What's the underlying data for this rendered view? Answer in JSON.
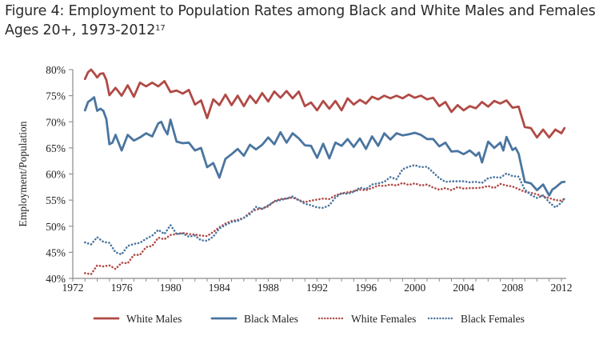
{
  "title": {
    "line1": "Figure 4: Employment to Population Rates among Black and White Males and Females",
    "line2": "Ages 20+, 1973-2012",
    "footnote": "17"
  },
  "chart_data": {
    "type": "line",
    "title": "Figure 4: Employment to Population Rates among Black and White Males and Females Ages 20+, 1973-2012",
    "xlabel": "",
    "ylabel": "Employment/Population",
    "xlim": [
      1972,
      2013
    ],
    "ylim": [
      40,
      80
    ],
    "x_ticks": [
      1972,
      1976,
      1980,
      1984,
      1988,
      1992,
      1996,
      2000,
      2004,
      2008,
      2012
    ],
    "x_tick_labels": [
      "1972",
      "1976",
      "1980",
      "1984",
      "1988",
      "1992",
      "1996",
      "2000",
      "2004",
      "2008",
      "2012"
    ],
    "y_ticks": [
      40,
      45,
      50,
      55,
      60,
      65,
      70,
      75,
      80
    ],
    "y_tick_labels": [
      "40%",
      "45%",
      "50%",
      "55%",
      "60%",
      "65%",
      "70%",
      "75%",
      "80%"
    ],
    "grid": false,
    "legend_position": "bottom",
    "colors": {
      "white": "#b04a45",
      "black": "#4a75a0"
    },
    "series": [
      {
        "name": "White Males",
        "style": "solid",
        "color": "#b04a45",
        "x": [
          1973.0,
          1973.25,
          1973.5,
          1973.75,
          1974.0,
          1974.25,
          1974.5,
          1974.75,
          1975.0,
          1975.5,
          1976.0,
          1976.5,
          1977.0,
          1977.5,
          1978.0,
          1978.5,
          1979.0,
          1979.5,
          1980.0,
          1980.5,
          1981.0,
          1981.5,
          1982.0,
          1982.5,
          1983.0,
          1983.5,
          1984.0,
          1984.5,
          1985.0,
          1985.5,
          1986.0,
          1986.5,
          1987.0,
          1987.5,
          1988.0,
          1988.5,
          1989.0,
          1989.5,
          1990.0,
          1990.5,
          1991.0,
          1991.5,
          1992.0,
          1992.5,
          1993.0,
          1993.5,
          1994.0,
          1994.5,
          1995.0,
          1995.5,
          1996.0,
          1996.5,
          1997.0,
          1997.5,
          1998.0,
          1998.5,
          1999.0,
          1999.5,
          2000.0,
          2000.5,
          2001.0,
          2001.5,
          2002.0,
          2002.5,
          2003.0,
          2003.5,
          2004.0,
          2004.5,
          2005.0,
          2005.5,
          2006.0,
          2006.5,
          2007.0,
          2007.5,
          2008.0,
          2008.5,
          2009.0,
          2009.5,
          2010.0,
          2010.5,
          2011.0,
          2011.5,
          2012.0,
          2012.25
        ],
        "values": [
          78.2,
          79.5,
          80.0,
          79.3,
          78.5,
          79.2,
          79.3,
          78.0,
          75.1,
          76.5,
          75.0,
          77.0,
          74.8,
          77.5,
          76.8,
          77.5,
          76.8,
          77.8,
          75.7,
          76.0,
          75.4,
          76.1,
          73.3,
          74.1,
          70.7,
          74.3,
          73.2,
          75.2,
          73.2,
          75.0,
          73.0,
          75.0,
          73.6,
          75.5,
          73.9,
          75.8,
          74.6,
          75.9,
          74.5,
          75.8,
          73.0,
          73.7,
          72.2,
          74.0,
          72.5,
          74.0,
          72.2,
          74.5,
          73.3,
          74.2,
          73.5,
          74.8,
          74.3,
          75.0,
          74.5,
          75.0,
          74.5,
          75.2,
          74.6,
          75.0,
          74.3,
          74.6,
          73.0,
          73.8,
          71.9,
          73.2,
          72.2,
          73.0,
          72.6,
          73.8,
          72.9,
          74.0,
          73.5,
          74.1,
          72.7,
          72.9,
          69.0,
          68.8,
          67.0,
          68.5,
          67.0,
          68.5,
          67.8,
          68.8
        ]
      },
      {
        "name": "Black Males",
        "style": "solid",
        "color": "#4a75a0",
        "x": [
          1973.0,
          1973.25,
          1973.5,
          1973.75,
          1974.0,
          1974.25,
          1974.5,
          1974.75,
          1975.0,
          1975.25,
          1975.5,
          1976.0,
          1976.5,
          1977.0,
          1977.5,
          1978.0,
          1978.5,
          1979.0,
          1979.25,
          1979.5,
          1979.75,
          1980.0,
          1980.5,
          1981.0,
          1981.5,
          1982.0,
          1982.5,
          1983.0,
          1983.5,
          1984.0,
          1984.5,
          1985.0,
          1985.5,
          1986.0,
          1986.5,
          1987.0,
          1987.5,
          1988.0,
          1988.5,
          1989.0,
          1989.5,
          1990.0,
          1990.5,
          1991.0,
          1991.5,
          1992.0,
          1992.5,
          1993.0,
          1993.5,
          1994.0,
          1994.5,
          1995.0,
          1995.5,
          1996.0,
          1996.5,
          1997.0,
          1997.5,
          1998.0,
          1998.5,
          1999.0,
          1999.5,
          2000.0,
          2000.5,
          2001.0,
          2001.5,
          2002.0,
          2002.5,
          2003.0,
          2003.5,
          2004.0,
          2004.5,
          2005.0,
          2005.25,
          2005.5,
          2006.0,
          2006.5,
          2007.0,
          2007.25,
          2007.5,
          2008.0,
          2008.25,
          2008.5,
          2009.0,
          2009.5,
          2010.0,
          2010.5,
          2011.0,
          2011.25,
          2011.5,
          2012.0,
          2012.25
        ],
        "values": [
          72.2,
          73.8,
          74.2,
          74.7,
          72.1,
          72.5,
          72.1,
          70.5,
          65.7,
          66.0,
          67.5,
          64.5,
          67.5,
          66.4,
          67.0,
          67.8,
          67.2,
          69.7,
          70.0,
          68.6,
          67.6,
          70.4,
          66.2,
          65.9,
          66.0,
          64.5,
          65.0,
          61.3,
          62.1,
          59.3,
          62.9,
          63.8,
          64.8,
          63.5,
          65.6,
          64.7,
          65.6,
          67.0,
          65.7,
          68.0,
          66.0,
          67.8,
          66.8,
          65.5,
          65.4,
          63.1,
          65.8,
          63.0,
          66.0,
          65.4,
          66.7,
          65.2,
          66.8,
          64.8,
          67.2,
          65.4,
          67.8,
          66.6,
          67.8,
          67.4,
          67.6,
          67.9,
          67.5,
          66.7,
          66.7,
          65.3,
          66.0,
          64.3,
          64.4,
          63.8,
          64.5,
          63.5,
          64.1,
          62.2,
          66.2,
          65.0,
          66.0,
          64.5,
          67.1,
          64.6,
          65.0,
          63.9,
          58.5,
          58.2,
          56.9,
          58.0,
          55.9,
          57.0,
          57.4,
          58.4,
          58.5
        ]
      },
      {
        "name": "White Females",
        "style": "dotted",
        "color": "#b04a45",
        "x": [
          1973.0,
          1973.5,
          1974.0,
          1974.5,
          1975.0,
          1975.5,
          1976.0,
          1976.5,
          1977.0,
          1977.5,
          1978.0,
          1978.5,
          1979.0,
          1979.5,
          1980.0,
          1980.5,
          1981.0,
          1981.5,
          1982.0,
          1982.5,
          1983.0,
          1983.5,
          1984.0,
          1984.5,
          1985.0,
          1985.5,
          1986.0,
          1986.5,
          1987.0,
          1987.5,
          1988.0,
          1988.5,
          1989.0,
          1989.5,
          1990.0,
          1990.5,
          1991.0,
          1991.5,
          1992.0,
          1992.5,
          1993.0,
          1993.5,
          1994.0,
          1994.5,
          1995.0,
          1995.5,
          1996.0,
          1996.5,
          1997.0,
          1997.5,
          1998.0,
          1998.5,
          1999.0,
          1999.5,
          2000.0,
          2000.5,
          2001.0,
          2001.5,
          2002.0,
          2002.5,
          2003.0,
          2003.5,
          2004.0,
          2004.5,
          2005.0,
          2005.5,
          2006.0,
          2006.5,
          2007.0,
          2007.5,
          2008.0,
          2008.5,
          2009.0,
          2009.5,
          2010.0,
          2010.5,
          2011.0,
          2011.5,
          2012.0,
          2012.25
        ],
        "values": [
          41.0,
          40.8,
          42.5,
          42.3,
          42.5,
          41.8,
          43.0,
          42.9,
          44.5,
          44.5,
          46.0,
          46.2,
          47.8,
          47.5,
          48.3,
          48.5,
          48.7,
          48.5,
          48.4,
          48.2,
          48.1,
          48.9,
          49.8,
          50.5,
          51.0,
          51.2,
          51.6,
          52.6,
          53.2,
          53.4,
          53.8,
          54.8,
          55.2,
          55.3,
          55.5,
          55.0,
          54.6,
          54.9,
          55.1,
          55.3,
          55.2,
          55.9,
          56.3,
          56.5,
          56.7,
          57.0,
          56.9,
          57.3,
          57.8,
          57.7,
          58.0,
          57.8,
          58.3,
          57.9,
          58.2,
          57.8,
          58.0,
          57.4,
          57.0,
          57.3,
          56.9,
          57.5,
          57.2,
          57.3,
          57.3,
          57.4,
          57.7,
          57.3,
          58.1,
          57.8,
          57.6,
          57.1,
          56.6,
          56.4,
          56.1,
          55.7,
          55.4,
          55.0,
          54.9,
          55.2
        ]
      },
      {
        "name": "Black Females",
        "style": "dotted",
        "color": "#4a75a0",
        "x": [
          1973.0,
          1973.5,
          1974.0,
          1974.5,
          1975.0,
          1975.5,
          1976.0,
          1976.5,
          1977.0,
          1977.5,
          1978.0,
          1978.5,
          1979.0,
          1979.5,
          1980.0,
          1980.5,
          1981.0,
          1981.5,
          1982.0,
          1982.5,
          1983.0,
          1983.5,
          1984.0,
          1984.5,
          1985.0,
          1985.5,
          1986.0,
          1986.5,
          1987.0,
          1987.5,
          1988.0,
          1988.5,
          1989.0,
          1989.5,
          1990.0,
          1990.5,
          1991.0,
          1991.5,
          1992.0,
          1992.5,
          1993.0,
          1993.5,
          1994.0,
          1994.5,
          1995.0,
          1995.5,
          1996.0,
          1996.5,
          1997.0,
          1997.5,
          1998.0,
          1998.5,
          1999.0,
          1999.5,
          2000.0,
          2000.5,
          2001.0,
          2001.5,
          2002.0,
          2002.5,
          2003.0,
          2003.5,
          2004.0,
          2004.5,
          2005.0,
          2005.5,
          2006.0,
          2006.5,
          2007.0,
          2007.5,
          2008.0,
          2008.5,
          2009.0,
          2009.5,
          2010.0,
          2010.5,
          2011.0,
          2011.5,
          2012.0,
          2012.25
        ],
        "values": [
          46.9,
          46.5,
          47.9,
          47.0,
          46.8,
          45.0,
          44.6,
          46.2,
          46.6,
          46.8,
          47.6,
          48.2,
          49.3,
          48.5,
          50.2,
          48.5,
          48.6,
          48.0,
          48.2,
          47.3,
          47.2,
          48.0,
          49.6,
          50.2,
          50.8,
          51.0,
          51.6,
          52.3,
          53.7,
          53.3,
          54.0,
          54.7,
          55.0,
          55.3,
          55.7,
          55.0,
          54.3,
          54.0,
          53.6,
          53.5,
          54.0,
          55.5,
          56.3,
          56.2,
          56.6,
          57.4,
          57.1,
          58.0,
          58.2,
          58.5,
          59.4,
          59.0,
          60.9,
          61.4,
          61.7,
          61.3,
          61.4,
          60.3,
          59.2,
          58.5,
          58.6,
          58.6,
          58.6,
          58.4,
          58.5,
          58.3,
          59.2,
          59.4,
          59.3,
          60.1,
          59.6,
          59.5,
          57.0,
          56.0,
          55.4,
          55.9,
          54.6,
          53.6,
          54.5,
          55.3
        ]
      }
    ]
  }
}
